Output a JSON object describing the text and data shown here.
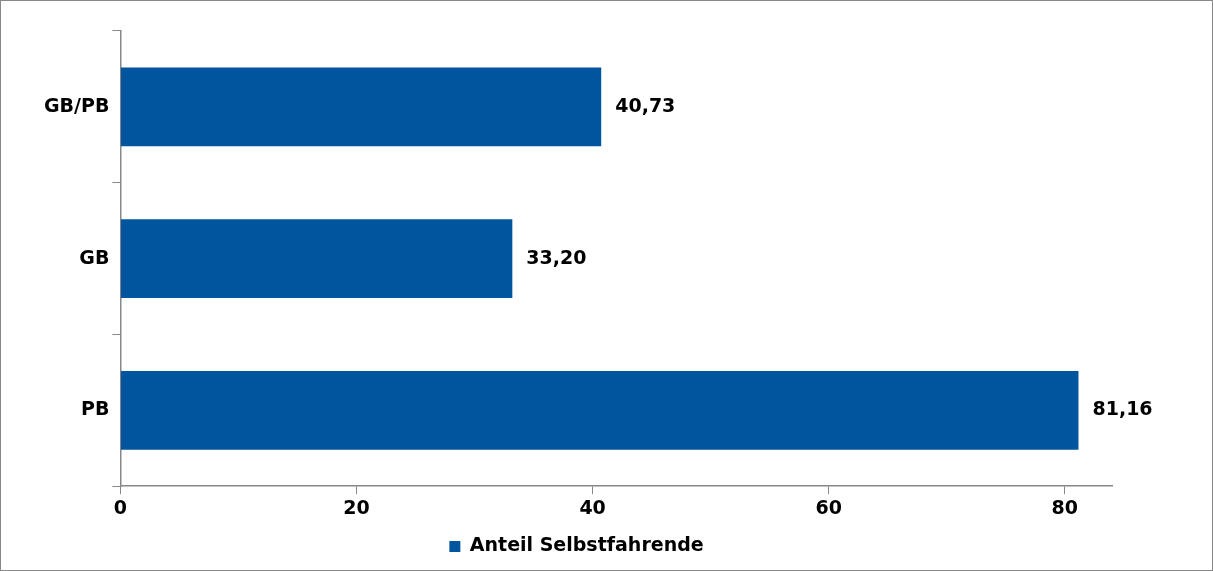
{
  "chart_data": {
    "type": "bar",
    "orientation": "horizontal",
    "categories": [
      "GB/PB",
      "GB",
      "PB"
    ],
    "series": [
      {
        "name": "Anteil Selbstfahrende",
        "color": "#00559f",
        "values": [
          40.73,
          33.2,
          81.16
        ],
        "value_labels": [
          "40,73",
          "33,20",
          "81,16"
        ]
      }
    ],
    "xlim": [
      0,
      84
    ],
    "xticks": [
      0,
      20,
      40,
      60,
      80
    ],
    "legend": "bottom"
  }
}
